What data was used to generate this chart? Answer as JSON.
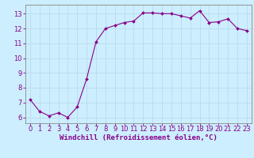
{
  "x": [
    0,
    1,
    2,
    3,
    4,
    5,
    6,
    7,
    8,
    9,
    10,
    11,
    12,
    13,
    14,
    15,
    16,
    17,
    18,
    19,
    20,
    21,
    22,
    23
  ],
  "y": [
    7.2,
    6.4,
    6.1,
    6.3,
    6.0,
    6.7,
    8.6,
    11.1,
    12.0,
    12.2,
    12.4,
    12.5,
    13.05,
    13.05,
    13.0,
    13.0,
    12.85,
    12.7,
    13.2,
    12.4,
    12.45,
    12.65,
    12.0,
    11.85
  ],
  "line_color": "#880088",
  "marker_color": "#880088",
  "bg_color": "#cceeff",
  "grid_color": "#aaddee",
  "xlabel": "Windchill (Refroidissement éolien,°C)",
  "ylim": [
    5.6,
    13.6
  ],
  "xlim": [
    -0.5,
    23.5
  ],
  "yticks": [
    6,
    7,
    8,
    9,
    10,
    11,
    12,
    13
  ],
  "xticks": [
    0,
    1,
    2,
    3,
    4,
    5,
    6,
    7,
    8,
    9,
    10,
    11,
    12,
    13,
    14,
    15,
    16,
    17,
    18,
    19,
    20,
    21,
    22,
    23
  ],
  "tick_color": "#880088",
  "label_fontsize": 6.5,
  "tick_fontsize": 6.0,
  "spine_color": "#888888"
}
